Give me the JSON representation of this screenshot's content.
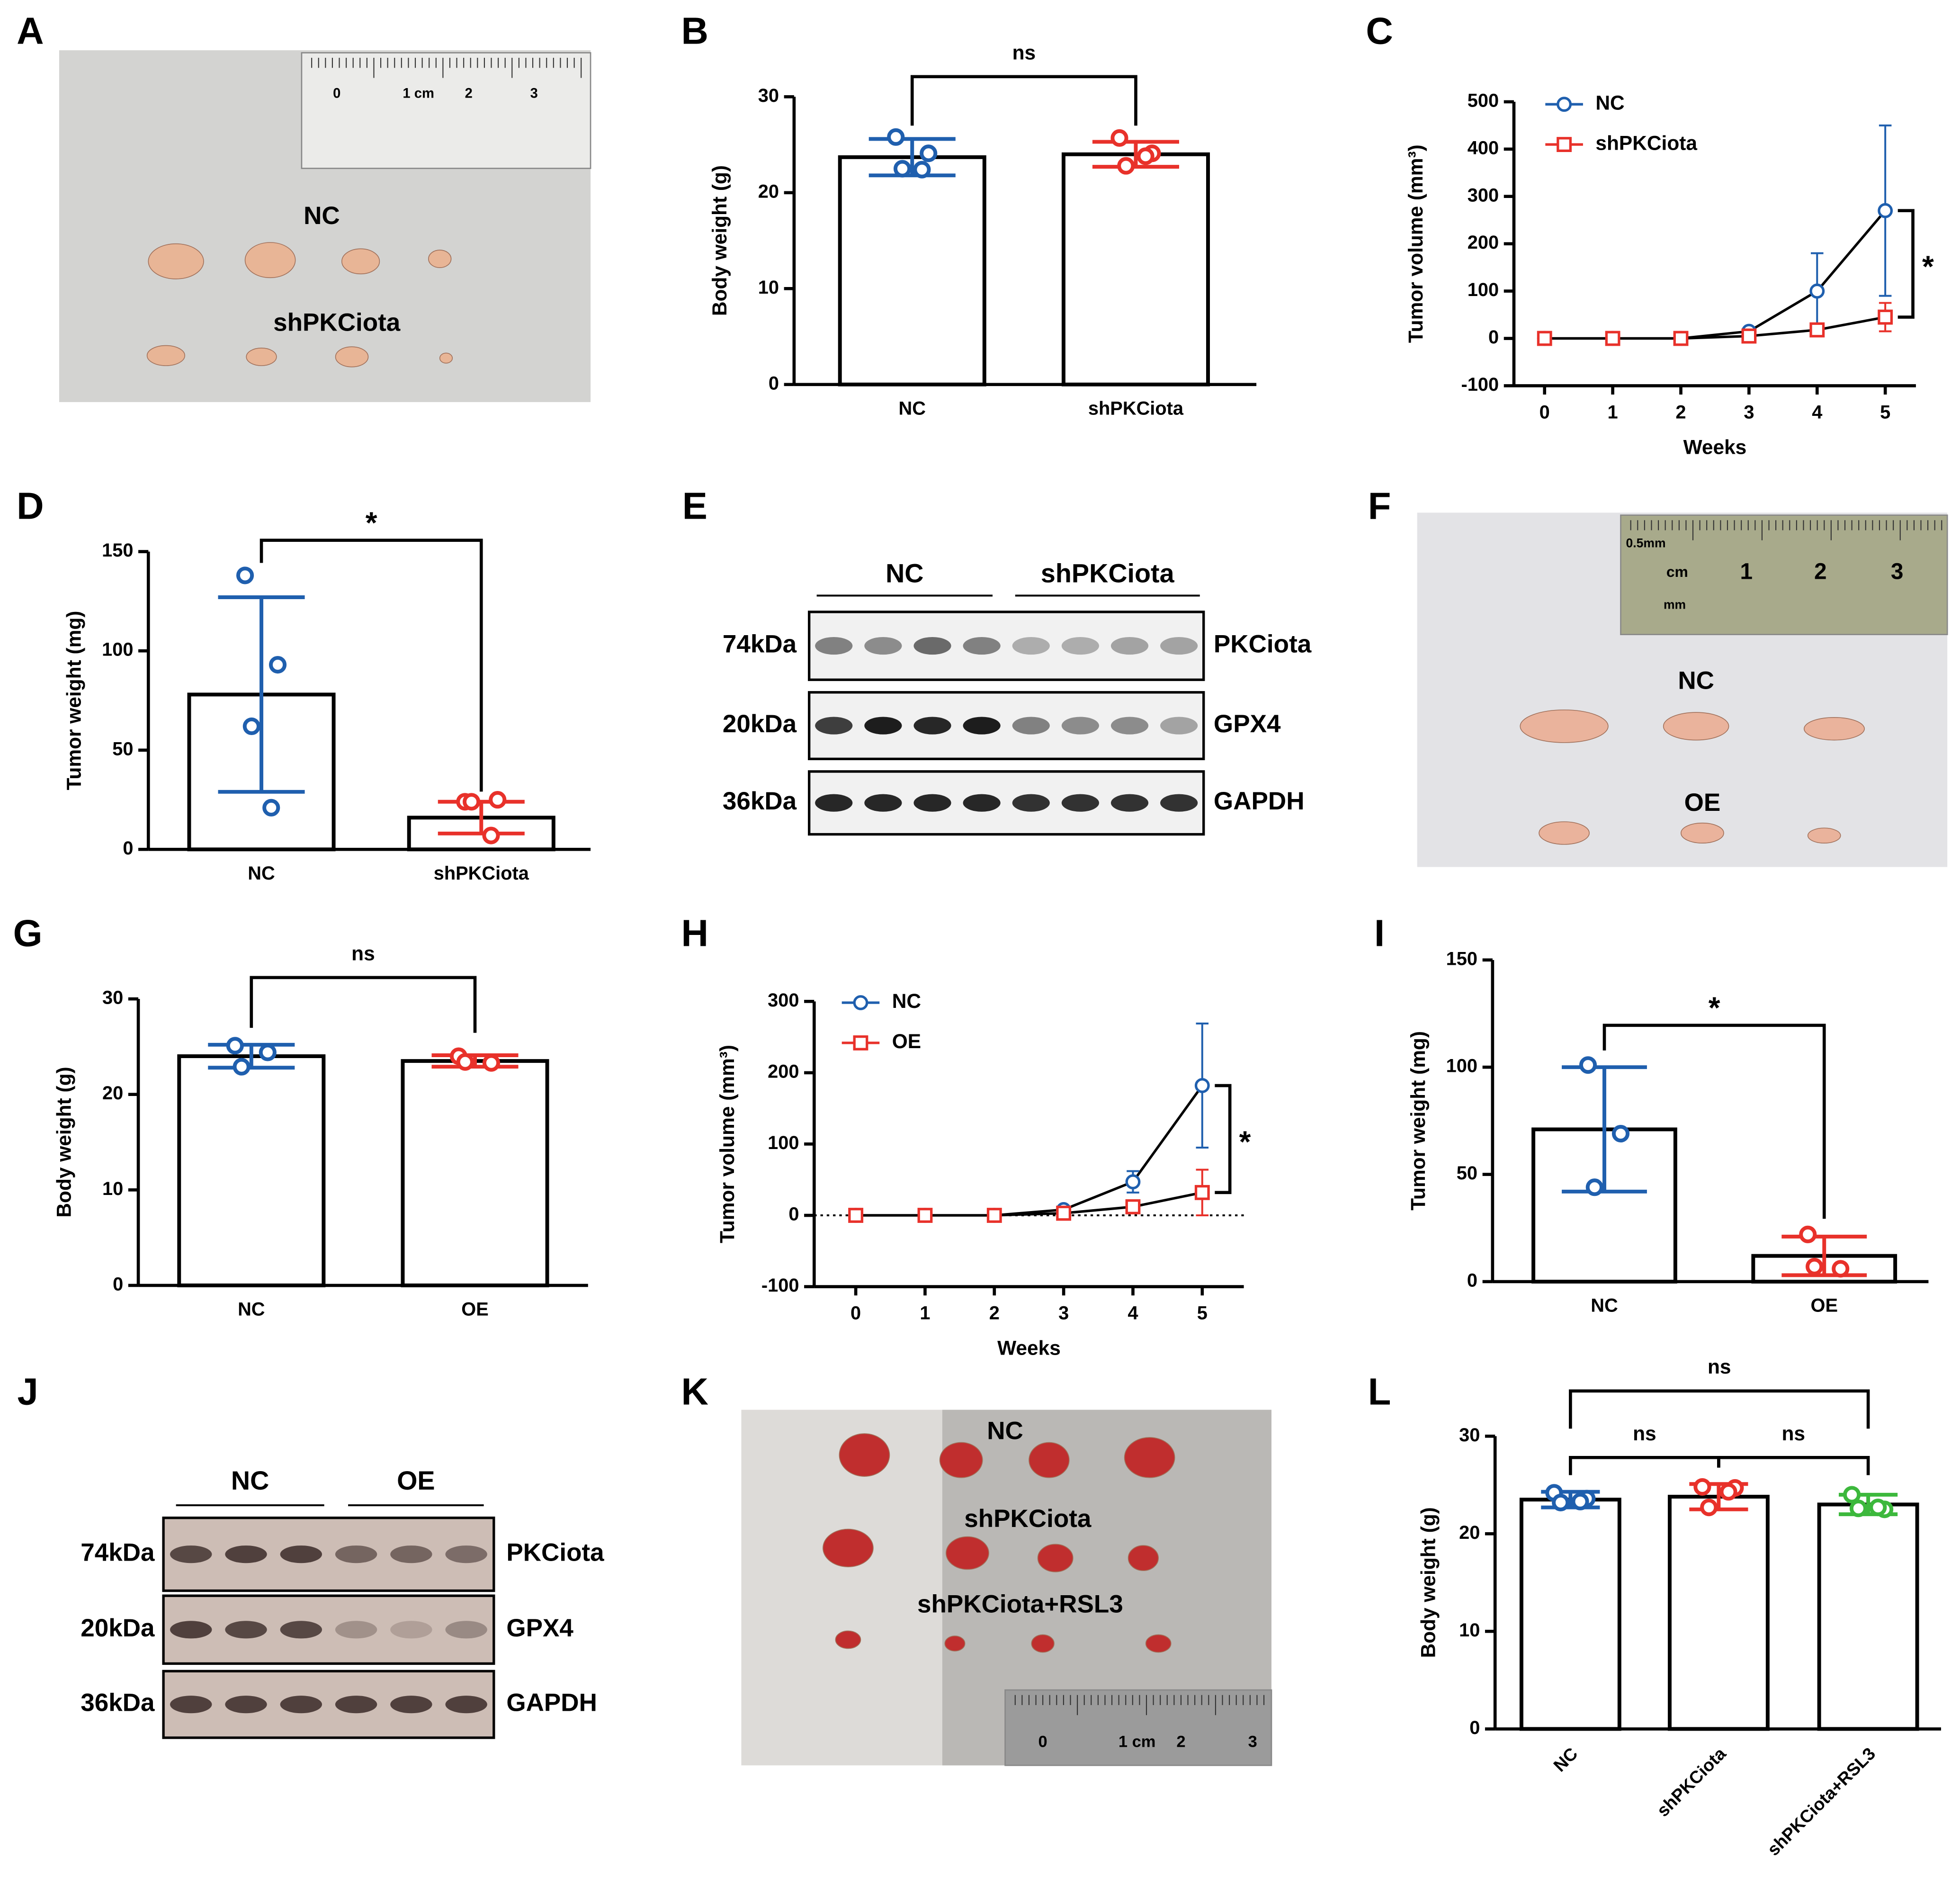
{
  "chart_data": [
    {
      "letter": "B",
      "type": "bar",
      "ylabel": "Body weight (g)",
      "categories": [
        "NC",
        "shPKCiota"
      ],
      "colors": [
        "#1f5fae",
        "#e8312a"
      ],
      "values": [
        23.7,
        24.0
      ],
      "errors": [
        1.9,
        1.3
      ],
      "points": [
        [
          25.8,
          24.1,
          22.5,
          22.4
        ],
        [
          25.7,
          24.1,
          22.8,
          23.8
        ]
      ],
      "ylim": [
        0,
        30
      ],
      "yticks": [
        0,
        10,
        20,
        30
      ],
      "comparisons": [
        "ns"
      ]
    },
    {
      "letter": "C",
      "type": "line",
      "ylabel": "Tumor volume (mm³)",
      "xlabel": "Weeks",
      "x": [
        0,
        1,
        2,
        3,
        4,
        5
      ],
      "xlim": [
        -0.45,
        5.45
      ],
      "xticks": [
        0,
        1,
        2,
        3,
        4,
        5
      ],
      "ylim": [
        -100,
        500
      ],
      "yticks": [
        -100,
        0,
        100,
        200,
        300,
        400,
        500
      ],
      "series": [
        {
          "name": "NC",
          "color": "#1f5fae",
          "marker": "circle",
          "values": [
            0,
            0,
            0,
            15,
            100,
            270
          ],
          "errors": [
            0,
            0,
            0,
            5,
            80,
            180
          ]
        },
        {
          "name": "shPKCiota",
          "color": "#e8312a",
          "marker": "square",
          "values": [
            0,
            0,
            0,
            5,
            18,
            45
          ],
          "errors": [
            0,
            0,
            0,
            3,
            8,
            30
          ]
        }
      ],
      "legend": "upper left",
      "significance": "*",
      "zero_line": false
    },
    {
      "letter": "D",
      "type": "bar",
      "ylabel": "Tumor weight (mg)",
      "categories": [
        "NC",
        "shPKCiota"
      ],
      "colors": [
        "#1f5fae",
        "#e8312a"
      ],
      "values": [
        78,
        16
      ],
      "errors": [
        49,
        8
      ],
      "points": [
        [
          138,
          93,
          62,
          21
        ],
        [
          24,
          25,
          24,
          7
        ]
      ],
      "ylim": [
        0,
        150
      ],
      "yticks": [
        0,
        50,
        100,
        150
      ],
      "comparisons": [
        "*"
      ]
    },
    {
      "letter": "G",
      "type": "bar",
      "ylabel": "Body weight (g)",
      "categories": [
        "NC",
        "OE"
      ],
      "colors": [
        "#1f5fae",
        "#e8312a"
      ],
      "values": [
        24.0,
        23.5
      ],
      "errors": [
        1.2,
        0.6
      ],
      "points": [
        [
          25.1,
          24.4,
          22.9
        ],
        [
          24.0,
          23.3,
          23.4
        ]
      ],
      "ylim": [
        0,
        30
      ],
      "yticks": [
        0,
        10,
        20,
        30
      ],
      "comparisons": [
        "ns"
      ]
    },
    {
      "letter": "H",
      "type": "line",
      "ylabel": "Tumor volume (mm³)",
      "xlabel": "Weeks",
      "x": [
        0,
        1,
        2,
        3,
        4,
        5
      ],
      "xlim": [
        -0.6,
        5.6
      ],
      "xticks": [
        0,
        1,
        2,
        3,
        4,
        5
      ],
      "ylim": [
        -100,
        300
      ],
      "yticks": [
        -100,
        0,
        100,
        200,
        300
      ],
      "series": [
        {
          "name": "NC",
          "color": "#1f5fae",
          "marker": "circle",
          "values": [
            0,
            0,
            0,
            8,
            47,
            182
          ],
          "errors": [
            0,
            0,
            0,
            3,
            15,
            87
          ]
        },
        {
          "name": "OE",
          "color": "#e8312a",
          "marker": "square",
          "values": [
            0,
            0,
            0,
            3,
            12,
            32
          ],
          "errors": [
            0,
            0,
            0,
            2,
            8,
            32
          ]
        }
      ],
      "legend": "upper left",
      "significance": "*",
      "zero_line": true
    },
    {
      "letter": "I",
      "type": "bar",
      "ylabel": "Tumor weight (mg)",
      "categories": [
        "NC",
        "OE"
      ],
      "colors": [
        "#1f5fae",
        "#e8312a"
      ],
      "values": [
        71,
        12
      ],
      "errors": [
        29,
        9
      ],
      "points": [
        [
          101,
          69,
          44
        ],
        [
          22,
          6,
          7
        ]
      ],
      "ylim": [
        0,
        150
      ],
      "yticks": [
        0,
        50,
        100,
        150
      ],
      "comparisons": [
        "*"
      ]
    },
    {
      "letter": "L",
      "type": "bar",
      "ylabel": "Body weight (g)",
      "categories": [
        "NC",
        "shPKCiota",
        "shPKCiota+RSL3"
      ],
      "colors": [
        "#1f5fae",
        "#e8312a",
        "#3cb83c"
      ],
      "values": [
        23.5,
        23.8,
        23.0
      ],
      "errors": [
        0.8,
        1.3,
        1.0
      ],
      "points": [
        [
          24.2,
          23.6,
          23.2,
          23.3
        ],
        [
          24.8,
          24.7,
          22.7,
          24.3
        ],
        [
          24.0,
          22.5,
          22.6,
          22.7
        ]
      ],
      "ylim": [
        0,
        30
      ],
      "yticks": [
        0,
        10,
        20,
        30
      ],
      "comparisons": [
        "ns",
        "ns",
        "ns"
      ]
    }
  ],
  "photos": [
    {
      "letter": "A",
      "labels": [
        "0",
        "1 cm",
        "2",
        "3",
        "NC",
        "shPKCiota"
      ]
    },
    {
      "letter": "F",
      "labels": [
        "0.5mm",
        "cm",
        "1",
        "2",
        "3",
        "mm",
        "NC",
        "OE"
      ]
    },
    {
      "letter": "K",
      "labels": [
        "NC",
        "shPKCiota",
        "shPKCiota+RSL3",
        "0",
        "1 cm",
        "2",
        "3"
      ]
    }
  ],
  "blots": [
    {
      "letter": "E",
      "groups": [
        "NC",
        "shPKCiota"
      ],
      "rows": [
        {
          "size": "74kDa",
          "protein": "PKCiota"
        },
        {
          "size": "20kDa",
          "protein": "GPX4"
        },
        {
          "size": "36kDa",
          "protein": "GAPDH"
        }
      ]
    },
    {
      "letter": "J",
      "groups": [
        "NC",
        "OE"
      ],
      "rows": [
        {
          "size": "74kDa",
          "protein": "PKCiota"
        },
        {
          "size": "20kDa",
          "protein": "GPX4"
        },
        {
          "size": "36kDa",
          "protein": "GAPDH"
        }
      ]
    }
  ]
}
